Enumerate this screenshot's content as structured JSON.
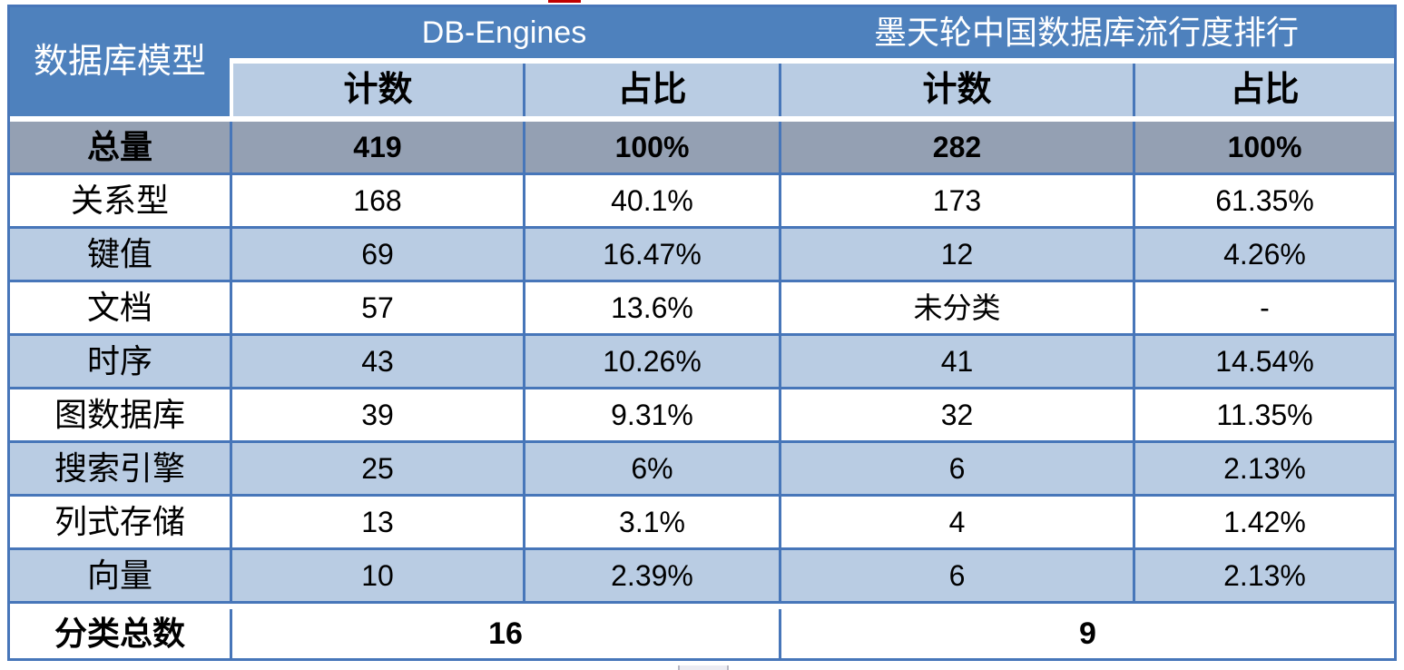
{
  "colors": {
    "header_blue": "#4E81BD",
    "light_blue": "#B9CCE3",
    "total_gray": "#94A0B3",
    "border_blue": "#4776B9",
    "artifact_red": "#C00000"
  },
  "table": {
    "model_header": "数据库模型",
    "groups": [
      {
        "label": "DB-Engines"
      },
      {
        "label": "墨天轮中国数据库流行度排行"
      }
    ],
    "subheaders": {
      "count": "计数",
      "share": "占比"
    },
    "total_row": {
      "label": "总量",
      "db_count": "419",
      "db_share": "100%",
      "mo_count": "282",
      "mo_share": "100%"
    },
    "rows": [
      {
        "label": "关系型",
        "db_count": "168",
        "db_share": "40.1%",
        "mo_count": "173",
        "mo_share": "61.35%"
      },
      {
        "label": "键值",
        "db_count": "69",
        "db_share": "16.47%",
        "mo_count": "12",
        "mo_share": "4.26%"
      },
      {
        "label": "文档",
        "db_count": "57",
        "db_share": "13.6%",
        "mo_count": "未分类",
        "mo_share": "-"
      },
      {
        "label": "时序",
        "db_count": "43",
        "db_share": "10.26%",
        "mo_count": "41",
        "mo_share": "14.54%"
      },
      {
        "label": "图数据库",
        "db_count": "39",
        "db_share": "9.31%",
        "mo_count": "32",
        "mo_share": "11.35%"
      },
      {
        "label": "搜索引擎",
        "db_count": "25",
        "db_share": "6%",
        "mo_count": "6",
        "mo_share": "2.13%"
      },
      {
        "label": "列式存储",
        "db_count": "13",
        "db_share": "3.1%",
        "mo_count": "4",
        "mo_share": "1.42%"
      },
      {
        "label": "向量",
        "db_count": "10",
        "db_share": "2.39%",
        "mo_count": "6",
        "mo_share": "2.13%"
      }
    ],
    "footer": {
      "label": "分类总数",
      "db_total": "16",
      "mo_total": "9"
    }
  },
  "chart_data": {
    "type": "table",
    "title": "数据库模型分类对比：DB-Engines vs 墨天轮中国数据库流行度排行",
    "column_groups": [
      "DB-Engines",
      "墨天轮中国数据库流行度排行"
    ],
    "columns": [
      "数据库模型",
      "DB-Engines 计数",
      "DB-Engines 占比",
      "墨天轮 计数",
      "墨天轮 占比"
    ],
    "rows": [
      [
        "总量",
        419,
        "100%",
        282,
        "100%"
      ],
      [
        "关系型",
        168,
        "40.1%",
        173,
        "61.35%"
      ],
      [
        "键值",
        69,
        "16.47%",
        12,
        "4.26%"
      ],
      [
        "文档",
        57,
        "13.6%",
        "未分类",
        "-"
      ],
      [
        "时序",
        43,
        "10.26%",
        41,
        "14.54%"
      ],
      [
        "图数据库",
        39,
        "9.31%",
        32,
        "11.35%"
      ],
      [
        "搜索引擎",
        25,
        "6%",
        6,
        "2.13%"
      ],
      [
        "列式存储",
        13,
        "3.1%",
        4,
        "1.42%"
      ],
      [
        "向量",
        10,
        "2.39%",
        6,
        "2.13%"
      ],
      [
        "分类总数",
        16,
        null,
        9,
        null
      ]
    ]
  }
}
